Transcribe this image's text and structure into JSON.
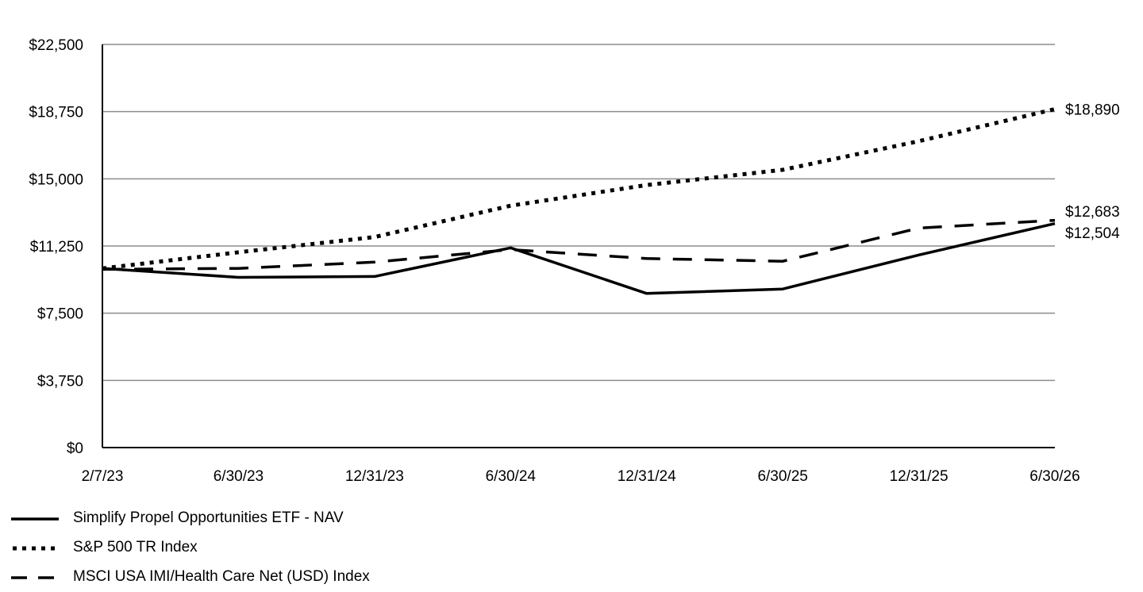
{
  "chart_data": {
    "type": "line",
    "x": [
      "2/7/23",
      "6/30/23",
      "12/31/23",
      "6/30/24",
      "12/31/24",
      "6/30/25",
      "12/31/25",
      "6/30/26"
    ],
    "ylim": [
      0,
      22500
    ],
    "yticks": [
      0,
      3750,
      7500,
      11250,
      15000,
      18750,
      22500
    ],
    "ytick_labels": [
      "$0",
      "$3,750",
      "$7,500",
      "$11,250",
      "$15,000",
      "$18,750",
      "$22,500"
    ],
    "grid": true,
    "legend_position": "bottom-left",
    "series": [
      {
        "name": "Simplify Propel Opportunities ETF - NAV",
        "style": "solid",
        "values": [
          10000,
          9500,
          9550,
          11150,
          8600,
          8850,
          10750,
          12504
        ],
        "end_label": "$12,504"
      },
      {
        "name": "S&P 500 TR Index",
        "style": "dotted",
        "values": [
          10000,
          10900,
          11750,
          13500,
          14650,
          15500,
          17100,
          18890
        ],
        "end_label": "$18,890"
      },
      {
        "name": "MSCI USA IMI/Health Care Net (USD) Index",
        "style": "dashed",
        "values": [
          9950,
          10000,
          10350,
          11050,
          10550,
          10400,
          12250,
          12683
        ],
        "end_label": "$12,683"
      }
    ],
    "colors": {
      "line": "#000000",
      "grid": "#8c8c8c",
      "axis": "#000000"
    }
  }
}
